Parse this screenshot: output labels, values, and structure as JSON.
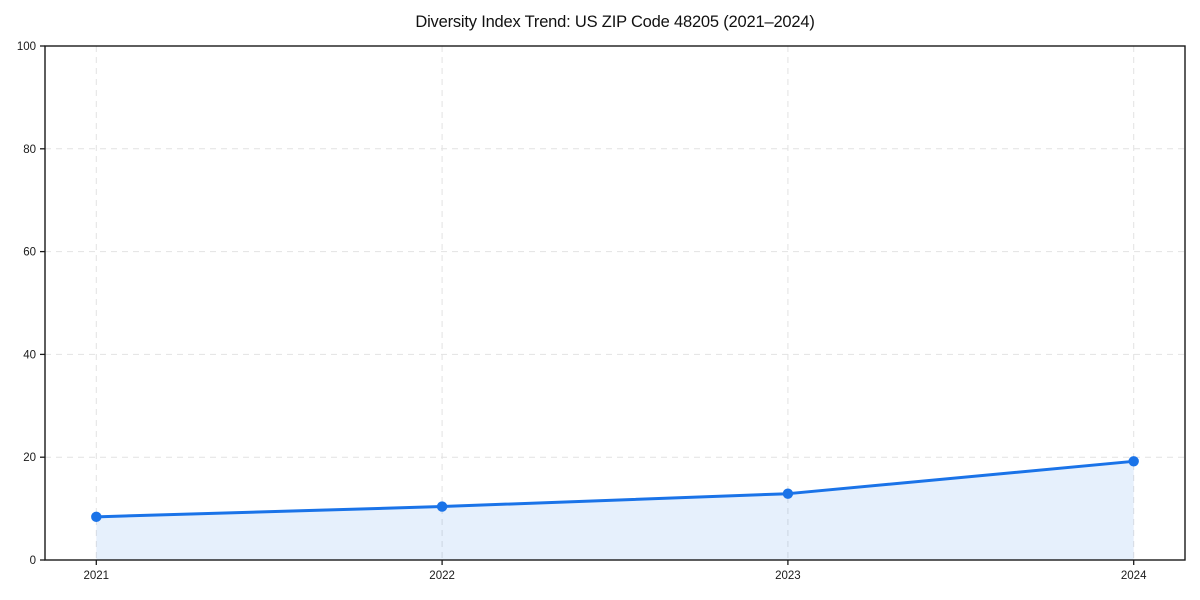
{
  "chart_data": {
    "type": "area",
    "title": "Diversity Index Trend: US ZIP Code 48205 (2021–2024)",
    "categories": [
      "2021",
      "2022",
      "2023",
      "2024"
    ],
    "series": [
      {
        "name": "Diversity Index",
        "values": [
          8.4,
          10.4,
          12.9,
          19.2
        ]
      }
    ],
    "xlabel": "",
    "ylabel": "",
    "ylim": [
      0,
      100
    ],
    "yticks": [
      0,
      20,
      40,
      60,
      80,
      100
    ],
    "grid": true,
    "grid_style": "dashed",
    "legend_position": "none",
    "line_color": "#1a73e8",
    "marker": "circle",
    "marker_color": "#1a73e8",
    "fill_color": "#1a73e8",
    "fill_opacity": 0.11,
    "grid_color": "#e2e2e2",
    "axis_color": "#1a1a1a",
    "tick_label_color": "#1a1a1a"
  }
}
